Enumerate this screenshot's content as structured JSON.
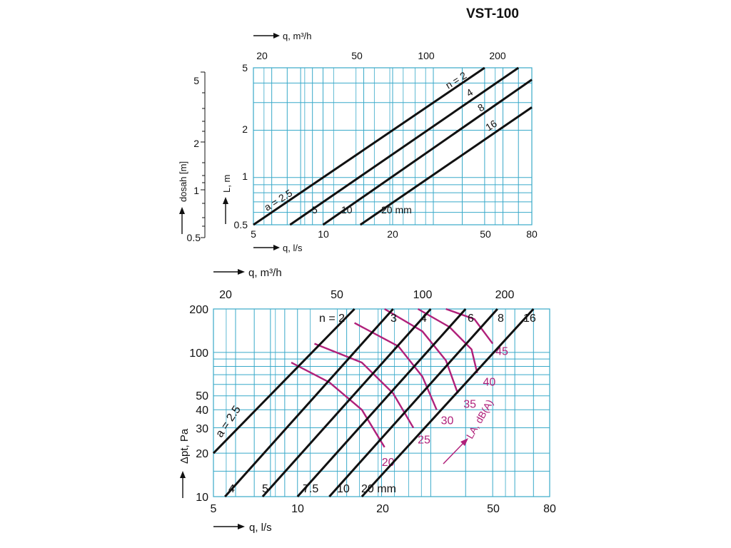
{
  "title": "VST-100",
  "chart_data": [
    {
      "type": "line",
      "x_scale": "log",
      "y_scale": "log",
      "xlabel": "q, l/s",
      "x2label": "q, m³/h",
      "ylabel": "L, m",
      "y2label": "dosah [m]",
      "xlim": [
        5,
        80
      ],
      "ylim": [
        0.5,
        5
      ],
      "x_ticks": [
        "5",
        "10",
        "20",
        "50",
        "80"
      ],
      "x2_ticks": [
        "20",
        "50",
        "100",
        "200"
      ],
      "y_ticks": [
        "0.5",
        "1",
        "2",
        "5"
      ],
      "y2_ticks": [
        "0.5",
        "1",
        "2",
        "5"
      ],
      "colors": {
        "grid": "#39a9c9",
        "line": "#111111"
      },
      "series": [
        {
          "name": "n = 2",
          "label": "a = 2.5",
          "points": [
            [
              5,
              0.5
            ],
            [
              50,
              5
            ]
          ]
        },
        {
          "name": "4",
          "label": "5",
          "points": [
            [
              7.2,
              0.5
            ],
            [
              70,
              5
            ]
          ]
        },
        {
          "name": "8",
          "label": "10",
          "points": [
            [
              10,
              0.5
            ],
            [
              80,
              4.2
            ]
          ]
        },
        {
          "name": "16",
          "label": "20 mm",
          "points": [
            [
              14.5,
              0.5
            ],
            [
              80,
              2.8
            ]
          ]
        }
      ]
    },
    {
      "type": "line",
      "x_scale": "log",
      "y_scale": "log",
      "xlabel": "q, l/s",
      "x2label": "q, m³/h",
      "ylabel": "Δpt, Pa",
      "xlim": [
        5,
        80
      ],
      "ylim": [
        10,
        200
      ],
      "x_ticks": [
        "5",
        "10",
        "20",
        "50",
        "80"
      ],
      "x2_ticks": [
        "20",
        "50",
        "100",
        "200"
      ],
      "y_ticks": [
        "10",
        "20",
        "30",
        "40",
        "50",
        "100",
        "200"
      ],
      "noise_label": "LA, dB(A)",
      "colors": {
        "grid": "#39a9c9",
        "line": "#111111",
        "noise": "#b0207a"
      },
      "series": [
        {
          "name": "n = 2",
          "label": "a = 2.5",
          "points": [
            [
              5,
              20
            ],
            [
              16,
              200
            ]
          ]
        },
        {
          "name": "3",
          "label": "4",
          "points": [
            [
              5.5,
              10
            ],
            [
              22,
              200
            ]
          ]
        },
        {
          "name": "4",
          "label": "5",
          "points": [
            [
              7.5,
              10
            ],
            [
              30,
              200
            ]
          ]
        },
        {
          "name": "6",
          "label": "7.5",
          "points": [
            [
              10,
              10
            ],
            [
              40,
              200
            ]
          ]
        },
        {
          "name": "8",
          "label": "10",
          "points": [
            [
              13,
              10
            ],
            [
              52,
              200
            ]
          ]
        },
        {
          "name": "16",
          "label": "20 mm",
          "points": [
            [
              17,
              10
            ],
            [
              70,
              200
            ]
          ]
        }
      ],
      "noise_curves": [
        {
          "name": "20",
          "points": [
            [
              9.5,
              85
            ],
            [
              13,
              62
            ],
            [
              17,
              40
            ],
            [
              20.5,
              22
            ]
          ]
        },
        {
          "name": "25",
          "points": [
            [
              11.5,
              115
            ],
            [
              17,
              85
            ],
            [
              22,
              52
            ],
            [
              26,
              30
            ]
          ]
        },
        {
          "name": "30",
          "points": [
            [
              16,
              160
            ],
            [
              23,
              110
            ],
            [
              28,
              68
            ],
            [
              31.5,
              40
            ]
          ]
        },
        {
          "name": "35",
          "points": [
            [
              20.5,
              200
            ],
            [
              28,
              140
            ],
            [
              34,
              88
            ],
            [
              37.5,
              52
            ]
          ]
        },
        {
          "name": "40",
          "points": [
            [
              27,
              200
            ],
            [
              35,
              150
            ],
            [
              42,
              105
            ],
            [
              44,
              72
            ]
          ]
        },
        {
          "name": "45",
          "points": [
            [
              34,
              200
            ],
            [
              43,
              170
            ],
            [
              50,
              115
            ]
          ]
        }
      ]
    }
  ]
}
